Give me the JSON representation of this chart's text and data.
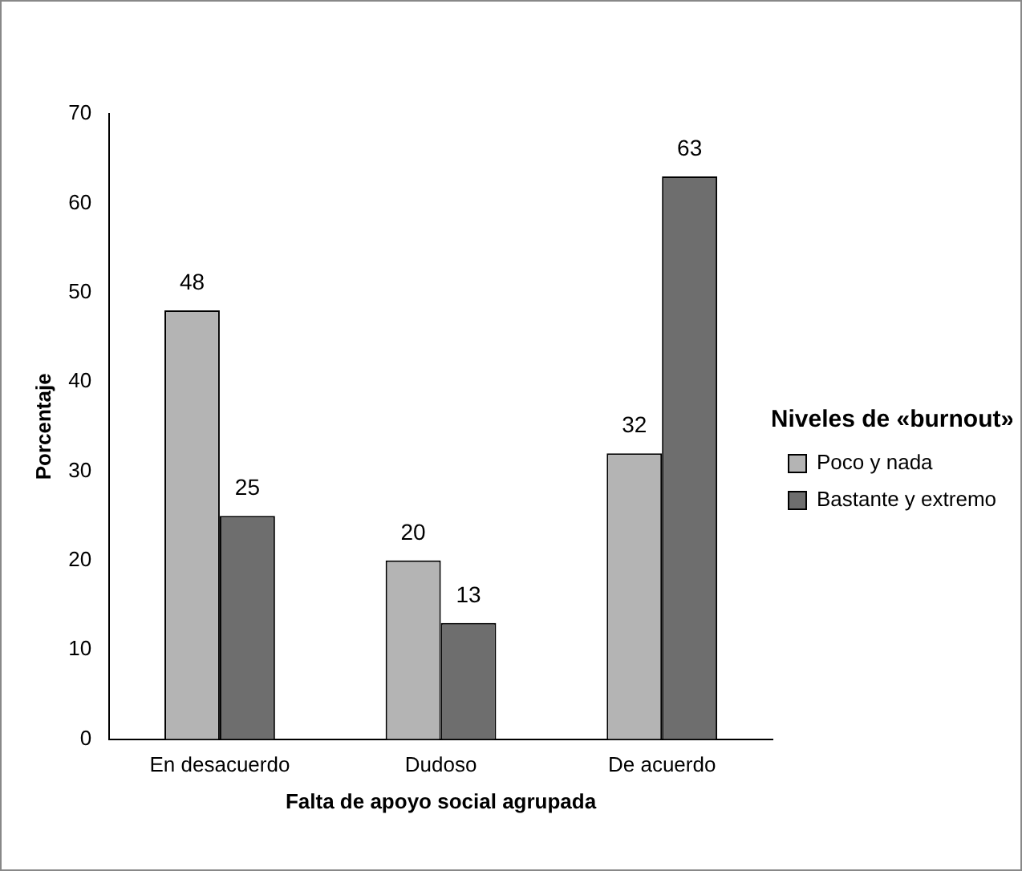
{
  "chart_data": {
    "type": "bar",
    "xlabel": "Falta de apoyo social agrupada",
    "ylabel": "Porcentaje",
    "legend_title": "Niveles de «burnout»",
    "categories": [
      "En desacuerdo",
      "Dudoso",
      "De acuerdo"
    ],
    "series": [
      {
        "name": "Poco y nada",
        "color": "#b4b4b4",
        "values": [
          48,
          20,
          32
        ]
      },
      {
        "name": "Bastante y extremo",
        "color": "#6e6e6e",
        "values": [
          25,
          13,
          63
        ]
      }
    ],
    "ylim": [
      0,
      70
    ],
    "yticks": [
      0,
      10,
      20,
      30,
      40,
      50,
      60,
      70
    ],
    "grid": false,
    "legend": "right",
    "data_labels": true
  }
}
